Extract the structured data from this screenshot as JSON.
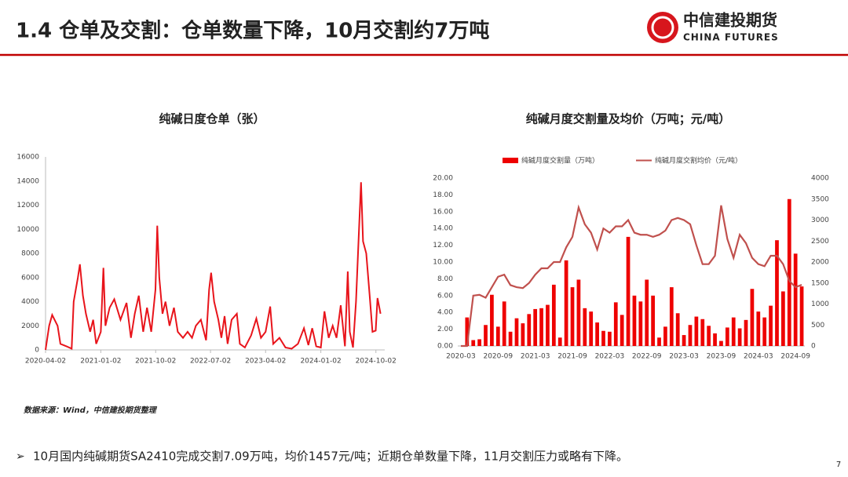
{
  "header": {
    "title": "1.4 仓单及交割：仓单数量下降，10月交割约7万吨"
  },
  "logo": {
    "name": "中信建投期货",
    "name_en": "CHINA FUTURES"
  },
  "chart_data": [
    {
      "type": "line",
      "title": "纯碱日度仓单（张）",
      "color": "#e8141b",
      "x": [
        "2020-04-02",
        "2020-04-20",
        "2020-05-05",
        "2020-06-01",
        "2020-06-15",
        "2020-07-15",
        "2020-08-10",
        "2020-08-20",
        "2020-09-10",
        "2020-09-20",
        "2020-10-05",
        "2020-10-20",
        "2020-11-10",
        "2020-11-25",
        "2020-12-10",
        "2021-01-02",
        "2021-01-15",
        "2021-01-25",
        "2021-02-15",
        "2021-03-10",
        "2021-04-10",
        "2021-05-10",
        "2021-06-01",
        "2021-06-20",
        "2021-07-10",
        "2021-08-01",
        "2021-08-20",
        "2021-09-10",
        "2021-10-01",
        "2021-10-10",
        "2021-10-20",
        "2021-11-05",
        "2021-11-20",
        "2021-12-10",
        "2022-01-01",
        "2022-01-20",
        "2022-02-15",
        "2022-03-10",
        "2022-04-01",
        "2022-04-20",
        "2022-05-15",
        "2022-06-10",
        "2022-06-25",
        "2022-07-05",
        "2022-07-20",
        "2022-08-10",
        "2022-08-25",
        "2022-09-10",
        "2022-09-25",
        "2022-10-15",
        "2022-11-10",
        "2022-11-25",
        "2022-12-20",
        "2023-01-20",
        "2023-02-15",
        "2023-03-10",
        "2023-04-02",
        "2023-04-25",
        "2023-05-10",
        "2023-06-10",
        "2023-07-10",
        "2023-08-10",
        "2023-09-10",
        "2023-10-10",
        "2023-11-01",
        "2023-11-20",
        "2023-12-10",
        "2024-01-02",
        "2024-01-20",
        "2024-02-10",
        "2024-03-01",
        "2024-03-20",
        "2024-04-10",
        "2024-05-01",
        "2024-05-15",
        "2024-05-25",
        "2024-06-10",
        "2024-06-25",
        "2024-07-10",
        "2024-07-20",
        "2024-07-30",
        "2024-08-15",
        "2024-09-01",
        "2024-09-15",
        "2024-10-01",
        "2024-10-10",
        "2024-10-25"
      ],
      "values": [
        0,
        2000,
        2900,
        2000,
        500,
        300,
        100,
        4000,
        6000,
        7100,
        4500,
        3000,
        1500,
        2500,
        500,
        1500,
        6800,
        2000,
        3500,
        4200,
        2500,
        3900,
        1000,
        3000,
        4500,
        1500,
        3500,
        1500,
        5000,
        10300,
        6000,
        3000,
        4000,
        2000,
        3500,
        1500,
        1000,
        1500,
        1000,
        2000,
        2500,
        800,
        5000,
        6400,
        4000,
        2500,
        1000,
        2800,
        500,
        2500,
        3000,
        500,
        200,
        1200,
        2600,
        1000,
        1500,
        3600,
        500,
        1000,
        200,
        100,
        500,
        1800,
        400,
        1800,
        300,
        200,
        3200,
        1000,
        2000,
        1000,
        3700,
        300,
        6500,
        1500,
        200,
        4000,
        10000,
        13900,
        9000,
        8000,
        4500,
        1500,
        1600,
        4300,
        3000
      ],
      "xlim": [
        "2020-04-02",
        "2024-11-15"
      ],
      "xticks": [
        "2020-04-02",
        "2021-01-02",
        "2021-10-02",
        "2022-07-02",
        "2023-04-02",
        "2024-01-02",
        "2024-10-02"
      ],
      "ylim": [
        0,
        16000
      ],
      "yticks": [
        0,
        2000,
        4000,
        6000,
        8000,
        10000,
        12000,
        14000,
        16000
      ]
    },
    {
      "type": "combo",
      "title": "纯碱月度交割量及均价（万吨；元/吨）",
      "categories": [
        "2020-03",
        null,
        null,
        null,
        null,
        null,
        "2020-09",
        null,
        null,
        null,
        null,
        null,
        "2021-03",
        null,
        null,
        null,
        null,
        null,
        "2021-09",
        null,
        null,
        null,
        null,
        null,
        "2022-03",
        null,
        null,
        null,
        null,
        null,
        "2022-09",
        null,
        null,
        null,
        null,
        null,
        "2023-03",
        null,
        null,
        null,
        null,
        null,
        "2023-09",
        null,
        null,
        null,
        null,
        null,
        "2024-03",
        null,
        null,
        null,
        null,
        null,
        "2024-09",
        null
      ],
      "series": [
        {
          "name": "纯碱月度交割量（万吨）",
          "type": "bar",
          "color": "#ee0000",
          "values": [
            0,
            3.4,
            0.7,
            0.8,
            2.5,
            6.1,
            2.3,
            5.3,
            1.7,
            3.3,
            2.7,
            3.8,
            4.4,
            4.5,
            4.9,
            7.3,
            1.0,
            10.2,
            7.0,
            7.9,
            4.5,
            4.1,
            2.8,
            1.8,
            1.7,
            5.2,
            3.7,
            13.0,
            6.0,
            5.3,
            7.9,
            6.0,
            1.0,
            2.3,
            7.0,
            3.9,
            1.3,
            2.5,
            3.5,
            3.2,
            2.4,
            1.5,
            0.6,
            2.2,
            3.4,
            2.1,
            3.1,
            6.8,
            4.1,
            3.4,
            4.8,
            12.6,
            6.5,
            17.5,
            11.0,
            7.09
          ]
        },
        {
          "name": "纯碱月度交割均价（元/吨）",
          "type": "line",
          "axis": "y2",
          "color": "#c0504d",
          "values": [
            0,
            0,
            1200,
            1220,
            1150,
            1400,
            1650,
            1700,
            1450,
            1400,
            1380,
            1500,
            1700,
            1850,
            1850,
            2000,
            2000,
            2350,
            2600,
            3300,
            2900,
            2700,
            2300,
            2800,
            2700,
            2850,
            2850,
            3000,
            2700,
            2650,
            2650,
            2600,
            2650,
            2750,
            3000,
            3050,
            3000,
            2900,
            2400,
            1950,
            1950,
            2150,
            3350,
            2550,
            2100,
            2650,
            2450,
            2100,
            1950,
            1900,
            2150,
            2150,
            1950,
            1550,
            1400,
            1457
          ]
        }
      ],
      "ylim": [
        0,
        20
      ],
      "yticks": [
        {
          "value": 0,
          "label": "0.00"
        },
        {
          "value": 2,
          "label": "2.00"
        },
        {
          "value": 4,
          "label": "4.00"
        },
        {
          "value": 6,
          "label": "6.00"
        },
        {
          "value": 8,
          "label": "8.00"
        },
        {
          "value": 10,
          "label": "10.00"
        },
        {
          "value": 12,
          "label": "12.00"
        },
        {
          "value": 14,
          "label": "14.00"
        },
        {
          "value": 16,
          "label": "16.00"
        },
        {
          "value": 18,
          "label": "18.00"
        },
        {
          "value": 20,
          "label": "20.00"
        }
      ],
      "y2lim": [
        0,
        4000
      ],
      "y2ticks": [
        0,
        500,
        1000,
        1500,
        2000,
        2500,
        3000,
        3500,
        4000
      ]
    }
  ],
  "source": "数据来源：Wind，中信建投期货整理",
  "bullet": "10月国内纯碱期货SA2410完成交割7.09万吨，均价1457元/吨；近期仓单数量下降，11月交割压力或略有下降。",
  "page_number": "7"
}
